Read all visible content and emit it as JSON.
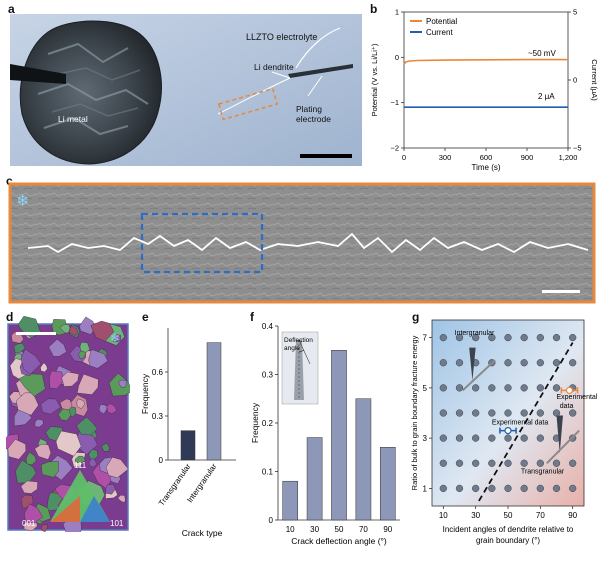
{
  "panels": {
    "a": {
      "label": "a",
      "electrolyte_text": "LLZTO electrolyte",
      "dendrite_text": "Li dendrite",
      "metal_text": "Li metal",
      "plating_text_1": "Plating",
      "plating_text_2": "electrode"
    },
    "b": {
      "label": "b",
      "legend": [
        "Potential",
        "Current"
      ],
      "ylabel_left": "Potential (V vs. Li/Li⁺)",
      "ylabel_right": "Current (μA)",
      "xlabel": "Time (s)",
      "annot_potential": "~50 mV",
      "annot_current": "2 μA"
    },
    "c": {
      "label": "c"
    },
    "d": {
      "label": "d",
      "ipf": [
        "111",
        "001",
        "101"
      ]
    },
    "e": {
      "label": "e"
    },
    "f": {
      "label": "f"
    },
    "g": {
      "label": "g"
    }
  },
  "colors": {
    "potential": "#e8883a",
    "current": "#1f5fae",
    "bar_trans": "#2f3a57",
    "bar_inter": "#8d97b8",
    "bar_f": "#8d97b8",
    "frame_orange": "#e8883a",
    "box_blue": "#2f6cc4"
  },
  "chart_data": [
    {
      "type": "line",
      "panel": "b",
      "xlabel": "Time (s)",
      "ylabel": "Potential (V vs. Li/Li⁺)",
      "ylabel_right": "Current (μA)",
      "xlim": [
        0,
        1200
      ],
      "ylim": [
        -2,
        1
      ],
      "ylim_right": [
        -5,
        5
      ],
      "xticks": [
        "0",
        "300",
        "600",
        "900",
        "1,200"
      ],
      "yticks": [
        "1",
        "0",
        "−1",
        "−2"
      ],
      "yticks_right": [
        "5",
        "0",
        "−5"
      ],
      "series": [
        {
          "name": "Potential",
          "axis": "left",
          "x": [
            0,
            15,
            40,
            100,
            300,
            600,
            900,
            1200
          ],
          "y": [
            -0.15,
            -0.1,
            -0.08,
            -0.07,
            -0.06,
            -0.055,
            -0.05,
            -0.05
          ]
        },
        {
          "name": "Current",
          "axis": "right",
          "x": [
            0,
            1200
          ],
          "y": [
            -2,
            -2
          ]
        }
      ]
    },
    {
      "type": "bar",
      "panel": "e",
      "categories": [
        "Transgranular",
        "Intergranular"
      ],
      "values": [
        0.2,
        0.8
      ],
      "xlabel": "Crack type",
      "ylabel": "Frequency",
      "ylim": [
        0,
        0.9
      ],
      "yticks": [
        "0",
        "0.3",
        "0.6"
      ]
    },
    {
      "type": "bar",
      "panel": "f",
      "categories": [
        "10",
        "30",
        "50",
        "70",
        "90"
      ],
      "values": [
        0.08,
        0.17,
        0.35,
        0.25,
        0.15
      ],
      "xlabel": "Crack deflection angle (°)",
      "ylabel": "Frequency",
      "ylim": [
        0,
        0.4
      ],
      "yticks": [
        "0",
        "0.1",
        "0.2",
        "0.3",
        "0.4"
      ],
      "inset_label": "Deflection angle"
    },
    {
      "type": "scatter",
      "panel": "g",
      "xlabel_1": "Incident angles of dendrite relative to",
      "xlabel_2": "grain boundary (°)",
      "ylabel": "Ratio of bulk to grain boundary fracture energy",
      "xticks": [
        "10",
        "30",
        "50",
        "70",
        "90"
      ],
      "yticks": [
        "1",
        "3",
        "5",
        "7"
      ],
      "region_labels": [
        "Intergranular",
        "Transgranular"
      ],
      "annot_labels": [
        "Experimental data",
        "Experimental data"
      ],
      "grid_x": [
        10,
        20,
        30,
        40,
        50,
        60,
        70,
        80,
        90
      ],
      "grid_y": [
        1,
        2,
        3,
        4,
        5,
        6,
        7
      ],
      "boundary_line": {
        "x": [
          32,
          90
        ],
        "y": [
          0.5,
          6.8
        ]
      },
      "experimental": [
        {
          "x": 50,
          "y": 3.3,
          "xerr": 5
        },
        {
          "x": 88,
          "y": 4.9,
          "xerr": 5
        }
      ]
    }
  ]
}
